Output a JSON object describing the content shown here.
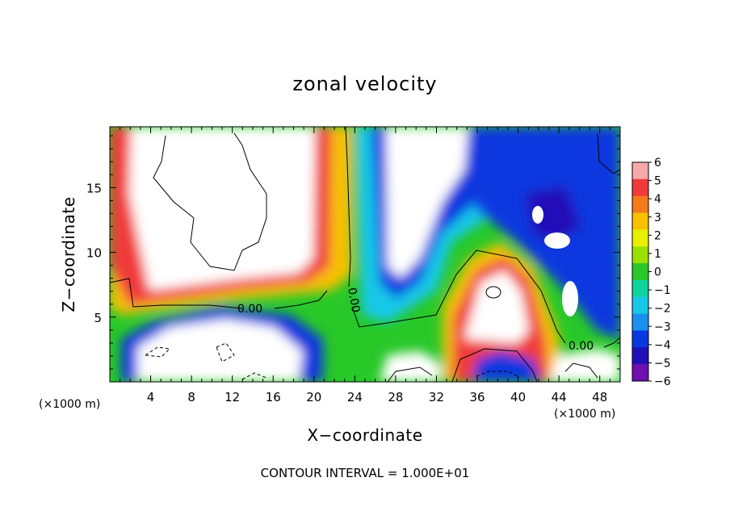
{
  "chart_data": {
    "type": "heatmap",
    "title": "zonal velocity",
    "xlabel": "X−coordinate",
    "ylabel": "Z−coordinate",
    "x_unit_left": "(×1000 m)",
    "x_unit_right": "(×1000 m)",
    "xlim": [
      0,
      50
    ],
    "ylim": [
      0,
      19.7
    ],
    "x_ticks": [
      4,
      8,
      12,
      16,
      20,
      24,
      28,
      32,
      36,
      40,
      44,
      48
    ],
    "y_ticks": [
      5,
      10,
      15
    ],
    "colorbar": {
      "levels": [
        "6",
        "5",
        "4",
        "3",
        "2",
        "1",
        "0",
        "−1",
        "−2",
        "−3",
        "−4",
        "−5",
        "−6"
      ],
      "colors": [
        "#f7a8a8",
        "#f03a3a",
        "#f57a1a",
        "#f8c000",
        "#e8f000",
        "#9ae000",
        "#28c828",
        "#10d4a0",
        "#18c8e8",
        "#1890f0",
        "#0838e0",
        "#2010b8",
        "#7010b0"
      ]
    },
    "contour_labels": [
      "0.00",
      "0.00",
      "0.00"
    ],
    "annotation": "CONTOUR INTERVAL = 1.000E+01",
    "colors": {
      "frame": "#000000",
      "saturated_positive": "#ffffff"
    }
  }
}
